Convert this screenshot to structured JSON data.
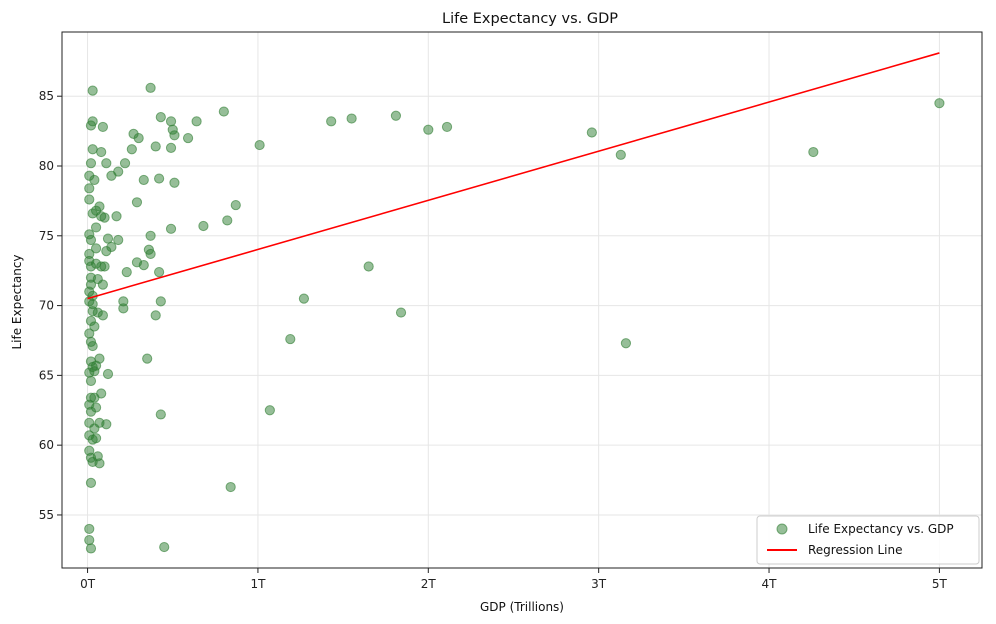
{
  "chart_data": {
    "type": "scatter",
    "title": "Life Expectancy vs. GDP",
    "xlabel": "GDP (Trillions)",
    "ylabel": "Life Expectancy",
    "xlim": [
      -0.15,
      5.25
    ],
    "ylim": [
      51.2,
      89.6
    ],
    "x_ticks": [
      0,
      1,
      2,
      3,
      4,
      5
    ],
    "x_tick_labels": [
      "0T",
      "1T",
      "2T",
      "3T",
      "4T",
      "5T"
    ],
    "y_ticks": [
      55,
      60,
      65,
      70,
      75,
      80,
      85
    ],
    "y_tick_labels": [
      "55",
      "60",
      "65",
      "70",
      "75",
      "80",
      "85"
    ],
    "grid": true,
    "legend_position": "bottom-right",
    "series": [
      {
        "name": "Life Expectancy vs. GDP",
        "kind": "scatter",
        "color": "#2e7d32",
        "points": [
          [
            0.03,
            85.4
          ],
          [
            0.37,
            85.6
          ],
          [
            0.8,
            83.9
          ],
          [
            1.43,
            83.2
          ],
          [
            1.55,
            83.4
          ],
          [
            1.81,
            83.6
          ],
          [
            2.0,
            82.6
          ],
          [
            2.11,
            82.8
          ],
          [
            2.96,
            82.4
          ],
          [
            5.0,
            84.5
          ],
          [
            3.13,
            80.8
          ],
          [
            4.26,
            81.0
          ],
          [
            1.01,
            81.5
          ],
          [
            0.87,
            77.2
          ],
          [
            0.82,
            76.1
          ],
          [
            0.68,
            75.7
          ],
          [
            0.43,
            83.5
          ],
          [
            0.49,
            83.2
          ],
          [
            0.5,
            82.6
          ],
          [
            0.51,
            82.2
          ],
          [
            0.64,
            83.2
          ],
          [
            0.59,
            82.0
          ],
          [
            0.27,
            82.3
          ],
          [
            0.3,
            82.0
          ],
          [
            0.26,
            81.2
          ],
          [
            0.4,
            81.4
          ],
          [
            0.49,
            81.3
          ],
          [
            0.03,
            83.2
          ],
          [
            0.02,
            82.9
          ],
          [
            0.09,
            82.8
          ],
          [
            0.03,
            81.2
          ],
          [
            0.08,
            81.0
          ],
          [
            0.02,
            80.2
          ],
          [
            0.11,
            80.2
          ],
          [
            0.22,
            80.2
          ],
          [
            0.18,
            79.6
          ],
          [
            0.14,
            79.3
          ],
          [
            0.33,
            79.0
          ],
          [
            0.42,
            79.1
          ],
          [
            0.51,
            78.8
          ],
          [
            0.04,
            79.0
          ],
          [
            0.01,
            79.3
          ],
          [
            0.01,
            78.4
          ],
          [
            0.29,
            77.4
          ],
          [
            0.01,
            77.6
          ],
          [
            0.07,
            77.1
          ],
          [
            0.05,
            76.8
          ],
          [
            0.03,
            76.6
          ],
          [
            0.1,
            76.3
          ],
          [
            0.08,
            76.4
          ],
          [
            0.17,
            76.4
          ],
          [
            0.01,
            75.1
          ],
          [
            0.02,
            74.7
          ],
          [
            0.05,
            75.6
          ],
          [
            0.12,
            74.8
          ],
          [
            0.18,
            74.7
          ],
          [
            0.14,
            74.2
          ],
          [
            0.11,
            73.9
          ],
          [
            0.37,
            75.0
          ],
          [
            0.49,
            75.5
          ],
          [
            0.36,
            74.0
          ],
          [
            0.37,
            73.7
          ],
          [
            0.05,
            74.1
          ],
          [
            0.01,
            73.7
          ],
          [
            0.01,
            73.2
          ],
          [
            0.02,
            72.8
          ],
          [
            0.05,
            73.0
          ],
          [
            0.08,
            72.8
          ],
          [
            0.1,
            72.8
          ],
          [
            0.29,
            73.1
          ],
          [
            0.33,
            72.9
          ],
          [
            0.23,
            72.4
          ],
          [
            0.42,
            72.4
          ],
          [
            1.65,
            72.8
          ],
          [
            0.02,
            72.0
          ],
          [
            0.06,
            71.9
          ],
          [
            0.02,
            71.5
          ],
          [
            0.09,
            71.5
          ],
          [
            0.01,
            71.0
          ],
          [
            0.03,
            70.7
          ],
          [
            0.01,
            70.3
          ],
          [
            0.03,
            70.1
          ],
          [
            0.21,
            70.3
          ],
          [
            0.21,
            69.8
          ],
          [
            0.43,
            70.3
          ],
          [
            1.27,
            70.5
          ],
          [
            1.84,
            69.5
          ],
          [
            0.4,
            69.3
          ],
          [
            0.09,
            69.3
          ],
          [
            0.06,
            69.5
          ],
          [
            0.03,
            69.6
          ],
          [
            0.02,
            68.9
          ],
          [
            0.04,
            68.5
          ],
          [
            0.01,
            68.0
          ],
          [
            0.02,
            67.4
          ],
          [
            0.03,
            67.1
          ],
          [
            1.19,
            67.6
          ],
          [
            3.16,
            67.3
          ],
          [
            0.35,
            66.2
          ],
          [
            0.07,
            66.2
          ],
          [
            0.02,
            66.0
          ],
          [
            0.03,
            65.6
          ],
          [
            0.05,
            65.7
          ],
          [
            0.04,
            65.3
          ],
          [
            0.01,
            65.2
          ],
          [
            0.02,
            64.6
          ],
          [
            0.12,
            65.1
          ],
          [
            0.08,
            63.7
          ],
          [
            0.02,
            63.4
          ],
          [
            0.04,
            63.4
          ],
          [
            0.01,
            62.9
          ],
          [
            0.02,
            62.4
          ],
          [
            0.05,
            62.7
          ],
          [
            0.01,
            61.6
          ],
          [
            0.04,
            61.2
          ],
          [
            0.07,
            61.6
          ],
          [
            0.11,
            61.5
          ],
          [
            1.07,
            62.5
          ],
          [
            0.43,
            62.2
          ],
          [
            0.01,
            60.7
          ],
          [
            0.03,
            60.4
          ],
          [
            0.05,
            60.5
          ],
          [
            0.01,
            59.6
          ],
          [
            0.02,
            59.1
          ],
          [
            0.03,
            58.8
          ],
          [
            0.07,
            58.7
          ],
          [
            0.06,
            59.2
          ],
          [
            0.02,
            57.3
          ],
          [
            0.84,
            57.0
          ],
          [
            0.01,
            54.0
          ],
          [
            0.01,
            53.2
          ],
          [
            0.02,
            52.6
          ],
          [
            0.45,
            52.7
          ]
        ]
      },
      {
        "name": "Regression Line",
        "kind": "line",
        "color": "#ff0000",
        "points": [
          [
            0.0,
            70.5
          ],
          [
            5.0,
            88.1
          ]
        ]
      }
    ]
  }
}
